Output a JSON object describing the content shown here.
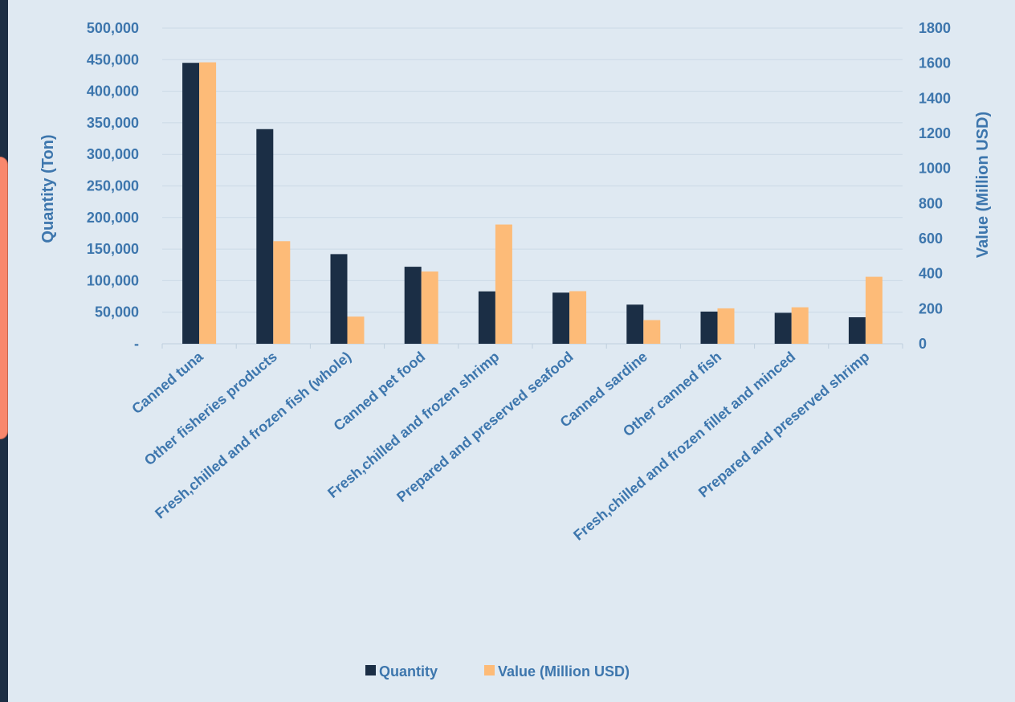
{
  "chart_data": {
    "type": "bar",
    "categories": [
      "Canned tuna",
      "Other fisheries products",
      "Fresh,chilled and frozen fish (whole)",
      "Canned pet food",
      "Fresh,chilled and frozen shrimp",
      "Prepared and preserved seafood",
      "Canned sardine",
      "Other canned fish",
      "Fresh,chilled and frozen  fillet and minced",
      "Prepared and preserved shrimp"
    ],
    "series": [
      {
        "name": "Quantity",
        "axis": "left",
        "color": "#1b2e45",
        "values": [
          445000,
          340000,
          142000,
          122000,
          83000,
          81000,
          62000,
          51000,
          49000,
          42000
        ]
      },
      {
        "name": "Value (Million USD)",
        "axis": "right",
        "color": "#fdbb78",
        "values": [
          1605,
          585,
          155,
          412,
          680,
          300,
          135,
          202,
          208,
          382
        ]
      }
    ],
    "ylabel": "Quantity (Ton)",
    "y2label": "Value (Million USD)",
    "ylim": [
      0,
      500000
    ],
    "y2lim": [
      0,
      1800
    ],
    "yticks": [
      "-",
      "50,000",
      "100,000",
      "150,000",
      "200,000",
      "250,000",
      "300,000",
      "350,000",
      "400,000",
      "450,000",
      "500,000"
    ],
    "y2ticks": [
      "0",
      "200",
      "400",
      "600",
      "800",
      "1000",
      "1200",
      "1400",
      "1600",
      "1800"
    ],
    "grid": true,
    "legend_position": "bottom"
  }
}
